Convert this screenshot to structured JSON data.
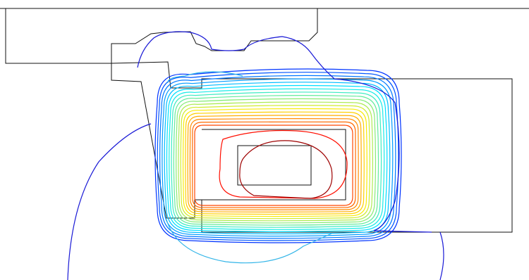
{
  "figure": {
    "kind": "contour-plot-over-geometry",
    "contour_levels": 18,
    "colormap": "jet",
    "colors": {
      "background": "#ffffff",
      "outline": "#111111",
      "lowest": "#1a1ad6",
      "low": "#33b5e8",
      "mid": "#37c84a",
      "high": "#e8d71c",
      "highest": "#d9232a"
    }
  }
}
